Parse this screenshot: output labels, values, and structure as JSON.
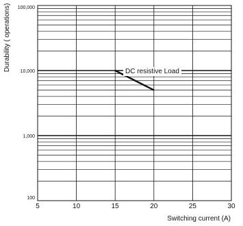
{
  "chart_data": {
    "type": "line",
    "title": "",
    "xlabel": "Switching current (A)",
    "ylabel": "Durability ( operations)",
    "x_scale": "linear",
    "y_scale": "log",
    "xlim": [
      5,
      30
    ],
    "ylim": [
      100,
      100000
    ],
    "x_ticks": [
      5,
      10,
      15,
      20,
      25,
      30
    ],
    "x_tick_labels": [
      "5",
      "10",
      "15",
      "20",
      "25",
      "30"
    ],
    "y_ticks": [
      100,
      1000,
      10000,
      100000
    ],
    "y_tick_labels": [
      "100",
      "1,000",
      "10,000",
      "100,000"
    ],
    "grid": true,
    "series": [
      {
        "name": "DC  resistive Load",
        "x": [
          15,
          20
        ],
        "y": [
          10000,
          5000
        ]
      }
    ],
    "annotations": [
      {
        "text": "DC  resistive Load"
      }
    ],
    "line_color": "#111111"
  }
}
